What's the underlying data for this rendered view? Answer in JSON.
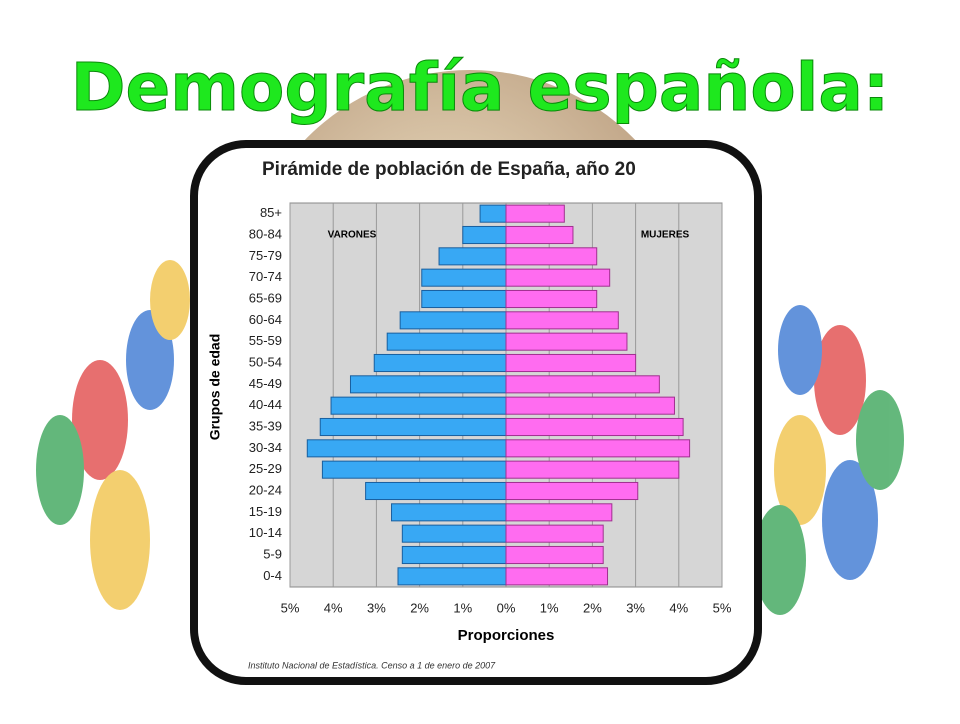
{
  "title": "Demografía española:",
  "chart_data": {
    "type": "bar",
    "orientation": "horizontal",
    "title": "Pirámide de población de España, año 20",
    "y_label": "Grupos de edad",
    "x_label": "Proporciones",
    "source": "Instituto Nacional de Estadística. Censo a 1 de enero de 2007",
    "categories": [
      "0-4",
      "5-9",
      "10-14",
      "15-19",
      "20-24",
      "25-29",
      "30-34",
      "35-39",
      "40-44",
      "45-49",
      "50-54",
      "55-59",
      "60-64",
      "65-69",
      "70-74",
      "75-79",
      "80-84",
      "85+"
    ],
    "series": [
      {
        "name": "VARONES",
        "color": "#38a8f4",
        "values": [
          -2.5,
          -2.4,
          -2.4,
          -2.65,
          -3.25,
          -4.25,
          -4.6,
          -4.3,
          -4.05,
          -3.6,
          -3.05,
          -2.75,
          -2.45,
          -1.95,
          -1.95,
          -1.55,
          -1.0,
          -0.6
        ]
      },
      {
        "name": "MUJERES",
        "color": "#ff6cf0",
        "values": [
          2.35,
          2.25,
          2.25,
          2.45,
          3.05,
          4.0,
          4.25,
          4.1,
          3.9,
          3.55,
          3.0,
          2.8,
          2.6,
          2.1,
          2.4,
          2.1,
          1.55,
          1.35
        ]
      }
    ],
    "xlim": [
      -5,
      5
    ],
    "xticks": [
      {
        "value": -5,
        "label": "5%"
      },
      {
        "value": -4,
        "label": "4%"
      },
      {
        "value": -3,
        "label": "3%"
      },
      {
        "value": -2,
        "label": "2%"
      },
      {
        "value": -1,
        "label": "1%"
      },
      {
        "value": 0,
        "label": "0%"
      },
      {
        "value": 1,
        "label": "1%"
      },
      {
        "value": 2,
        "label": "2%"
      },
      {
        "value": 3,
        "label": "3%"
      },
      {
        "value": 4,
        "label": "4%"
      },
      {
        "value": 5,
        "label": "5%"
      }
    ],
    "grid": true
  }
}
